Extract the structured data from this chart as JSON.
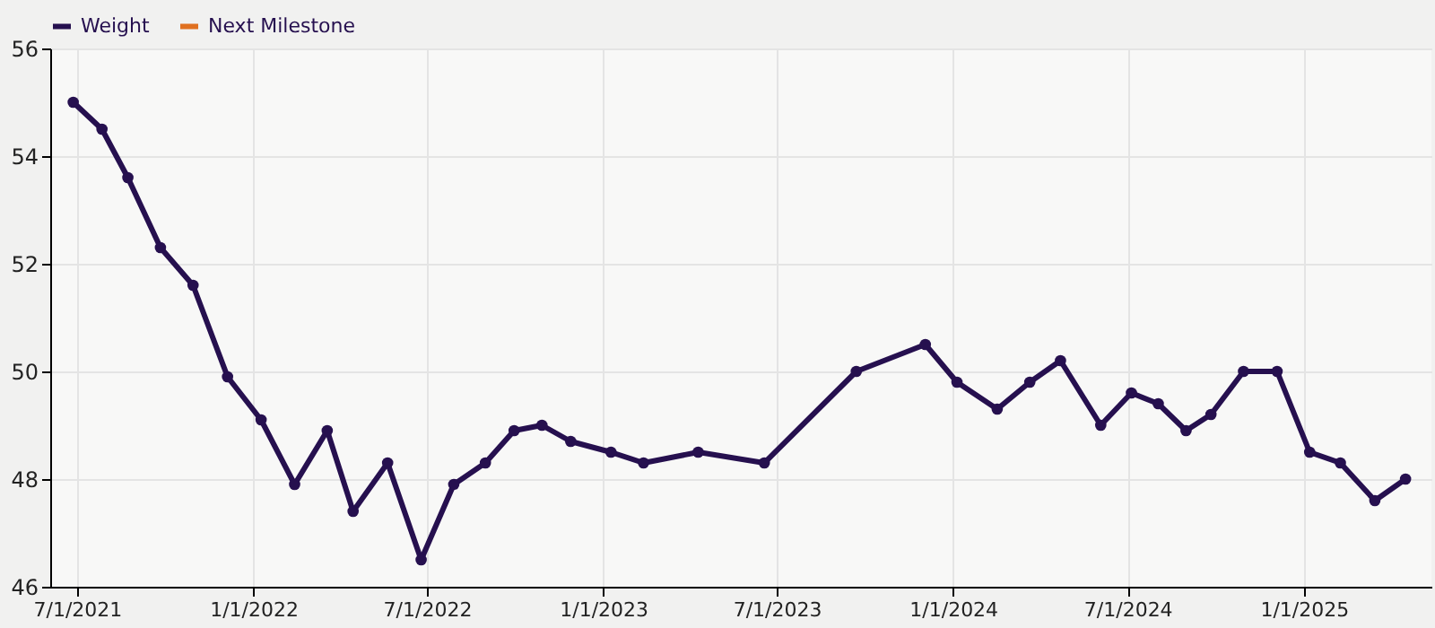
{
  "chart_data": {
    "type": "line",
    "x": [
      "2021-06-27",
      "2021-07-27",
      "2021-08-23",
      "2021-09-26",
      "2021-10-30",
      "2021-12-05",
      "2022-01-09",
      "2022-02-13",
      "2022-03-19",
      "2022-04-15",
      "2022-05-21",
      "2022-06-25",
      "2022-07-29",
      "2022-08-31",
      "2022-09-30",
      "2022-10-29",
      "2022-11-28",
      "2023-01-09",
      "2023-02-12",
      "2023-04-10",
      "2023-06-18",
      "2023-09-22",
      "2023-12-03",
      "2024-01-05",
      "2024-02-16",
      "2024-03-21",
      "2024-04-22",
      "2024-06-03",
      "2024-07-05",
      "2024-08-02",
      "2024-08-31",
      "2024-09-26",
      "2024-10-30",
      "2024-12-04",
      "2025-01-07",
      "2025-02-08",
      "2025-03-16",
      "2025-04-17"
    ],
    "series": [
      {
        "name": "Weight",
        "color": "#26104f",
        "values": [
          55.0,
          54.5,
          53.6,
          52.3,
          51.6,
          49.9,
          49.1,
          47.9,
          48.9,
          47.4,
          48.3,
          46.5,
          47.9,
          48.3,
          48.9,
          49.0,
          48.7,
          48.5,
          48.3,
          48.5,
          48.3,
          50.0,
          50.5,
          49.8,
          49.3,
          49.8,
          50.2,
          49.0,
          49.6,
          49.4,
          48.9,
          49.2,
          50.0,
          50.0,
          48.5,
          48.3,
          47.6,
          48.0
        ]
      },
      {
        "name": "Next Milestone",
        "color": "#e07020",
        "values": [
          null,
          null,
          null,
          null,
          null,
          null,
          null,
          null,
          null,
          null,
          null,
          null,
          null,
          null,
          null,
          null,
          null,
          null,
          null,
          null,
          null,
          null,
          null,
          null,
          null,
          null,
          null,
          null,
          null,
          null,
          null,
          null,
          null,
          null,
          null,
          null,
          null,
          null
        ]
      }
    ],
    "xlim": [
      "2021-06-03",
      "2025-05-14"
    ],
    "xticks": [
      {
        "value": "2021-07-01",
        "label": "7/1/2021"
      },
      {
        "value": "2022-01-01",
        "label": "1/1/2022"
      },
      {
        "value": "2022-07-01",
        "label": "7/1/2022"
      },
      {
        "value": "2023-01-01",
        "label": "1/1/2023"
      },
      {
        "value": "2023-07-01",
        "label": "7/1/2023"
      },
      {
        "value": "2024-01-01",
        "label": "1/1/2024"
      },
      {
        "value": "2024-07-01",
        "label": "7/1/2024"
      },
      {
        "value": "2025-01-01",
        "label": "1/1/2025"
      }
    ],
    "ylim": [
      46,
      56
    ],
    "yticks": [
      46,
      48,
      50,
      52,
      54,
      56
    ],
    "grid": true,
    "legend": "top left",
    "marker": "circle",
    "line_style": "solid"
  }
}
